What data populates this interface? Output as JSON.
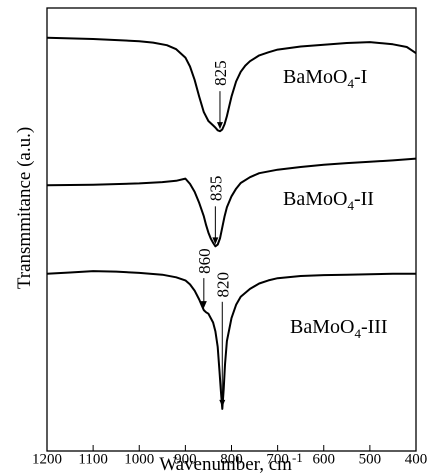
{
  "chart_data": {
    "type": "line",
    "xlabel": "Wavenumber, cm",
    "xlabel_sup": "-1",
    "ylabel": "Transmmitance (a.u.)",
    "xlim": [
      1200,
      400
    ],
    "x_ticks": [
      "1200",
      "1100",
      "1000",
      "900",
      "800",
      "700",
      "600",
      "500",
      "400"
    ],
    "grid": false,
    "legend": "none",
    "series": [
      {
        "name": "BaMoO4-I",
        "label_parts": [
          "BaMoO",
          "4",
          "-I"
        ],
        "x": [
          1200,
          1100,
          1000,
          970,
          940,
          920,
          900,
          890,
          880,
          870,
          860,
          850,
          840,
          835,
          830,
          825,
          820,
          815,
          810,
          805,
          800,
          790,
          780,
          770,
          760,
          740,
          720,
          700,
          650,
          600,
          550,
          500,
          450,
          420,
          410,
          400
        ],
        "y": [
          0.933,
          0.93,
          0.925,
          0.922,
          0.916,
          0.907,
          0.888,
          0.868,
          0.838,
          0.8,
          0.765,
          0.745,
          0.735,
          0.73,
          0.724,
          0.722,
          0.726,
          0.738,
          0.756,
          0.778,
          0.8,
          0.834,
          0.856,
          0.87,
          0.88,
          0.893,
          0.9,
          0.906,
          0.913,
          0.917,
          0.921,
          0.923,
          0.918,
          0.912,
          0.905,
          0.898
        ]
      },
      {
        "name": "BaMoO4-II",
        "label_parts": [
          "BaMoO",
          "4",
          "-II"
        ],
        "x": [
          1200,
          1100,
          1000,
          950,
          920,
          900,
          890,
          880,
          870,
          860,
          855,
          850,
          845,
          840,
          835,
          830,
          825,
          820,
          815,
          810,
          800,
          790,
          780,
          760,
          740,
          700,
          650,
          600,
          550,
          500,
          450,
          400
        ],
        "y": [
          0.6,
          0.601,
          0.604,
          0.607,
          0.61,
          0.615,
          0.603,
          0.585,
          0.56,
          0.53,
          0.51,
          0.493,
          0.48,
          0.47,
          0.462,
          0.466,
          0.48,
          0.505,
          0.53,
          0.55,
          0.575,
          0.592,
          0.605,
          0.618,
          0.627,
          0.635,
          0.641,
          0.646,
          0.65,
          0.653,
          0.656,
          0.66
        ]
      },
      {
        "name": "BaMoO4-III",
        "label_parts": [
          "BaMoO",
          "4",
          "-III"
        ],
        "x": [
          1200,
          1150,
          1100,
          1050,
          1000,
          950,
          920,
          900,
          890,
          880,
          870,
          865,
          860,
          855,
          850,
          840,
          835,
          830,
          826,
          823,
          820,
          817,
          814,
          810,
          800,
          790,
          780,
          760,
          740,
          720,
          700,
          650,
          600,
          550,
          500,
          450,
          400
        ],
        "y": [
          0.4,
          0.403,
          0.406,
          0.405,
          0.402,
          0.398,
          0.392,
          0.385,
          0.376,
          0.362,
          0.342,
          0.33,
          0.318,
          0.313,
          0.31,
          0.29,
          0.27,
          0.235,
          0.18,
          0.135,
          0.095,
          0.14,
          0.195,
          0.248,
          0.3,
          0.33,
          0.348,
          0.366,
          0.378,
          0.385,
          0.39,
          0.395,
          0.397,
          0.398,
          0.399,
          0.4,
          0.4
        ]
      }
    ],
    "annotations": [
      {
        "text": "825",
        "series": 0,
        "x": 825
      },
      {
        "text": "835",
        "series": 1,
        "x": 835
      },
      {
        "text": "860",
        "series": 2,
        "x": 860
      },
      {
        "text": "820",
        "series": 2,
        "x": 820
      }
    ]
  }
}
